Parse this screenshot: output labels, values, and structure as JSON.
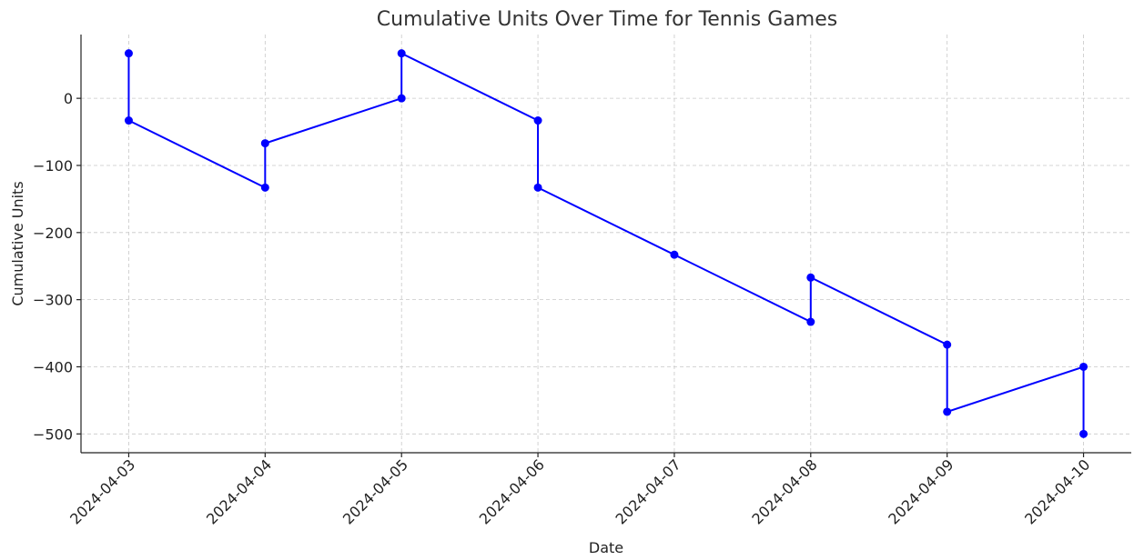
{
  "chart_data": {
    "type": "line",
    "title": "Cumulative Units Over Time for Tennis Games",
    "xlabel": "Date",
    "ylabel": "Cumulative Units",
    "x": [
      "2024-04-03",
      "2024-04-03",
      "2024-04-04",
      "2024-04-04",
      "2024-04-05",
      "2024-04-05",
      "2024-04-06",
      "2024-04-06",
      "2024-04-07",
      "2024-04-08",
      "2024-04-08",
      "2024-04-09",
      "2024-04-09",
      "2024-04-10",
      "2024-04-10"
    ],
    "series": [
      {
        "name": "Cumulative Units",
        "color": "#0000ff",
        "values": [
          67,
          -33,
          -133,
          -67,
          0,
          67,
          -33,
          -133,
          -233,
          -333,
          -267,
          -367,
          -467,
          -400,
          -500
        ]
      }
    ],
    "xticks": [
      "2024-04-03",
      "2024-04-04",
      "2024-04-05",
      "2024-04-06",
      "2024-04-07",
      "2024-04-08",
      "2024-04-09",
      "2024-04-10"
    ],
    "ylim": [
      -528,
      95
    ],
    "yticks": [
      {
        "value": -500,
        "label": "−500"
      },
      {
        "value": -400,
        "label": "−400"
      },
      {
        "value": -300,
        "label": "−300"
      },
      {
        "value": -200,
        "label": "−200"
      },
      {
        "value": -100,
        "label": "−100"
      },
      0
    ],
    "grid": true
  }
}
